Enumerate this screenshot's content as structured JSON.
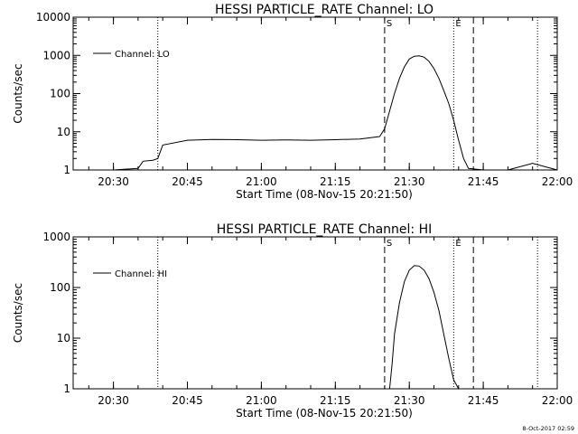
{
  "footer": {
    "timestamp": "8-Oct-2017 02:59"
  },
  "chart_data": [
    {
      "type": "line",
      "title": "HESSI PARTICLE_RATE Channel: LO",
      "xlabel": "Start Time (08-Nov-15 20:21:50)",
      "ylabel": "Counts/sec",
      "yscale": "log",
      "xlim": [
        "20:21:50",
        "22:00"
      ],
      "ylim": [
        1,
        10000
      ],
      "x_ticks": [
        "20:30",
        "20:45",
        "21:00",
        "21:15",
        "21:30",
        "21:45",
        "22:00"
      ],
      "y_ticks": [
        "1",
        "10",
        "100",
        "1000",
        "10000"
      ],
      "legend": "top-left",
      "markers": [
        {
          "time": "20:39",
          "style": "dotted",
          "label": ""
        },
        {
          "time": "21:25",
          "style": "dashed",
          "label": "S"
        },
        {
          "time": "21:39",
          "style": "dotted",
          "label": "E"
        },
        {
          "time": "21:43",
          "style": "dashed",
          "label": ""
        },
        {
          "time": "21:56",
          "style": "dotted",
          "label": ""
        }
      ],
      "series": [
        {
          "name": "Channel: LO",
          "points": [
            [
              "20:21:50",
              1
            ],
            [
              "20:25",
              1
            ],
            [
              "20:30",
              1
            ],
            [
              "20:35",
              1.1
            ],
            [
              "20:36",
              1.7
            ],
            [
              "20:38",
              1.8
            ],
            [
              "20:39",
              2
            ],
            [
              "20:40",
              4.5
            ],
            [
              "20:45",
              6
            ],
            [
              "20:50",
              6.3
            ],
            [
              "20:55",
              6.2
            ],
            [
              "21:00",
              6
            ],
            [
              "21:05",
              6.1
            ],
            [
              "21:10",
              6
            ],
            [
              "21:15",
              6.2
            ],
            [
              "21:20",
              6.5
            ],
            [
              "21:24",
              7.5
            ],
            [
              "21:25",
              12
            ],
            [
              "21:26",
              35
            ],
            [
              "21:27",
              100
            ],
            [
              "21:28",
              250
            ],
            [
              "21:29",
              500
            ],
            [
              "21:30",
              800
            ],
            [
              "21:31",
              950
            ],
            [
              "21:32",
              970
            ],
            [
              "21:33",
              900
            ],
            [
              "21:34",
              700
            ],
            [
              "21:35",
              450
            ],
            [
              "21:36",
              250
            ],
            [
              "21:37",
              120
            ],
            [
              "21:38",
              55
            ],
            [
              "21:39",
              20
            ],
            [
              "21:40",
              6
            ],
            [
              "21:41",
              2
            ],
            [
              "21:42",
              1.1
            ],
            [
              "21:45",
              1
            ],
            [
              "21:50",
              1
            ],
            [
              "21:55",
              1.5
            ],
            [
              "22:00",
              1
            ]
          ]
        }
      ]
    },
    {
      "type": "line",
      "title": "HESSI PARTICLE_RATE Channel: HI",
      "xlabel": "Start Time (08-Nov-15 20:21:50)",
      "ylabel": "Counts/sec",
      "yscale": "log",
      "xlim": [
        "20:21:50",
        "22:00"
      ],
      "ylim": [
        1,
        1000
      ],
      "x_ticks": [
        "20:30",
        "20:45",
        "21:00",
        "21:15",
        "21:30",
        "21:45",
        "22:00"
      ],
      "y_ticks": [
        "1",
        "10",
        "100",
        "1000"
      ],
      "legend": "top-left",
      "markers": [
        {
          "time": "20:39",
          "style": "dotted",
          "label": ""
        },
        {
          "time": "21:25",
          "style": "dashed",
          "label": "S"
        },
        {
          "time": "21:39",
          "style": "dotted",
          "label": "E"
        },
        {
          "time": "21:43",
          "style": "dashed",
          "label": ""
        },
        {
          "time": "21:56",
          "style": "dotted",
          "label": ""
        }
      ],
      "series": [
        {
          "name": "Channel: HI",
          "points": [
            [
              "21:26",
              1
            ],
            [
              "21:26:30",
              3
            ],
            [
              "21:27",
              12
            ],
            [
              "21:28",
              50
            ],
            [
              "21:29",
              130
            ],
            [
              "21:30",
              220
            ],
            [
              "21:31",
              270
            ],
            [
              "21:32",
              265
            ],
            [
              "21:33",
              220
            ],
            [
              "21:34",
              150
            ],
            [
              "21:35",
              80
            ],
            [
              "21:36",
              35
            ],
            [
              "21:37",
              12
            ],
            [
              "21:38",
              4
            ],
            [
              "21:39",
              1.5
            ],
            [
              "21:40",
              1
            ]
          ]
        }
      ]
    }
  ]
}
